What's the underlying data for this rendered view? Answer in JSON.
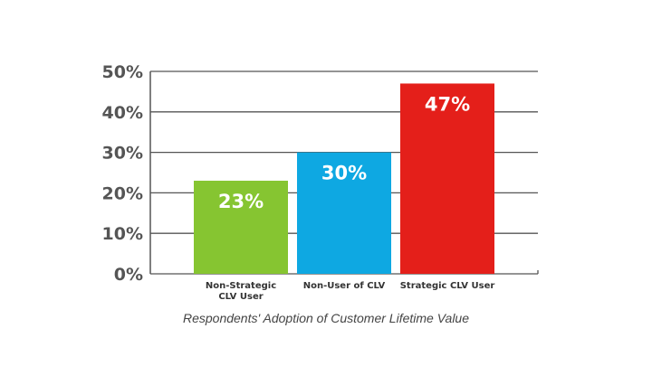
{
  "chart_data": {
    "type": "bar",
    "title": "",
    "caption": "Respondents' Adoption of Customer Lifetime Value",
    "categories": [
      "Non-Strategic CLV User",
      "Non-User of CLV",
      "Strategic CLV User"
    ],
    "category_lines": [
      [
        "Non-Strategic",
        "CLV User"
      ],
      [
        "Non-User of CLV"
      ],
      [
        "Strategic CLV User"
      ]
    ],
    "values": [
      23,
      30,
      47
    ],
    "data_labels": [
      "23%",
      "30%",
      "47%"
    ],
    "colors": [
      "#86c531",
      "#0ea8e2",
      "#e41f1a"
    ],
    "ylim": [
      0,
      50
    ],
    "yticks": [
      0,
      10,
      20,
      30,
      40,
      50
    ],
    "ytick_labels": [
      "0%",
      "10%",
      "20%",
      "30%",
      "40%",
      "50%"
    ],
    "xlabel": "",
    "ylabel": "",
    "grid": true,
    "legend": "none"
  }
}
